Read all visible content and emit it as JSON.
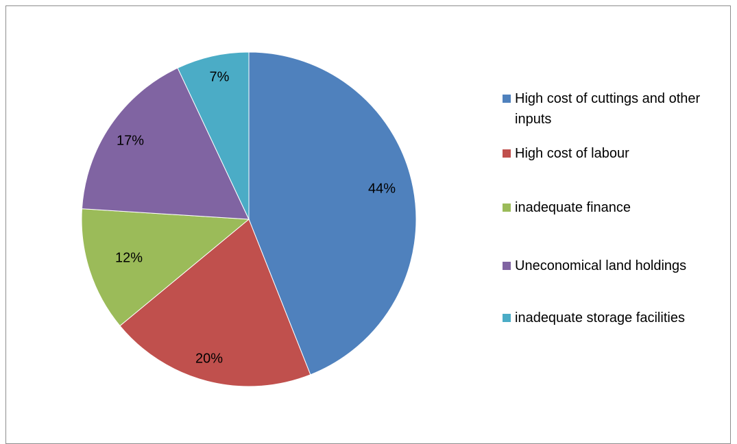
{
  "chart_data": {
    "type": "pie",
    "title": "",
    "legend_position": "right",
    "slices": [
      {
        "label": "High cost of cuttings and other inputs",
        "value": 44,
        "display": "44%",
        "color": "#4f81bd"
      },
      {
        "label": "High cost of labour",
        "value": 20,
        "display": "20%",
        "color": "#c0504d"
      },
      {
        "label": "inadequate finance",
        "value": 12,
        "display": "12%",
        "color": "#9bbb59"
      },
      {
        "label": "Uneconomical land holdings",
        "value": 17,
        "display": "17%",
        "color": "#8064a2"
      },
      {
        "label": "inadequate storage facilities",
        "value": 7,
        "display": "7%",
        "color": "#4bacc6"
      }
    ]
  }
}
